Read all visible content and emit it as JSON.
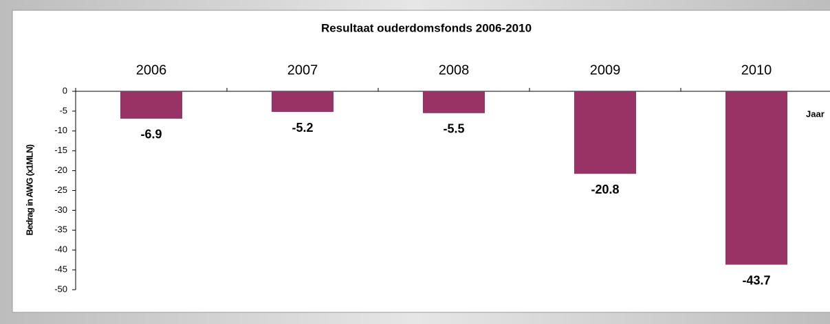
{
  "chart_data": {
    "type": "bar",
    "title": "Resultaat ouderdomsfonds 2006-2010",
    "y_label": "Bedrag in AWG (x1MLN)",
    "x_label": "Jaar",
    "categories": [
      "2006",
      "2007",
      "2008",
      "2009",
      "2010"
    ],
    "values": [
      -6.9,
      -5.2,
      -5.5,
      -20.8,
      -43.7
    ],
    "color": "#993366",
    "ylim": [
      -50,
      0
    ],
    "yticks": [
      0,
      -5,
      -10,
      -15,
      -20,
      -25,
      -30,
      -35,
      -40,
      -45,
      -50
    ],
    "data_labels": true
  }
}
